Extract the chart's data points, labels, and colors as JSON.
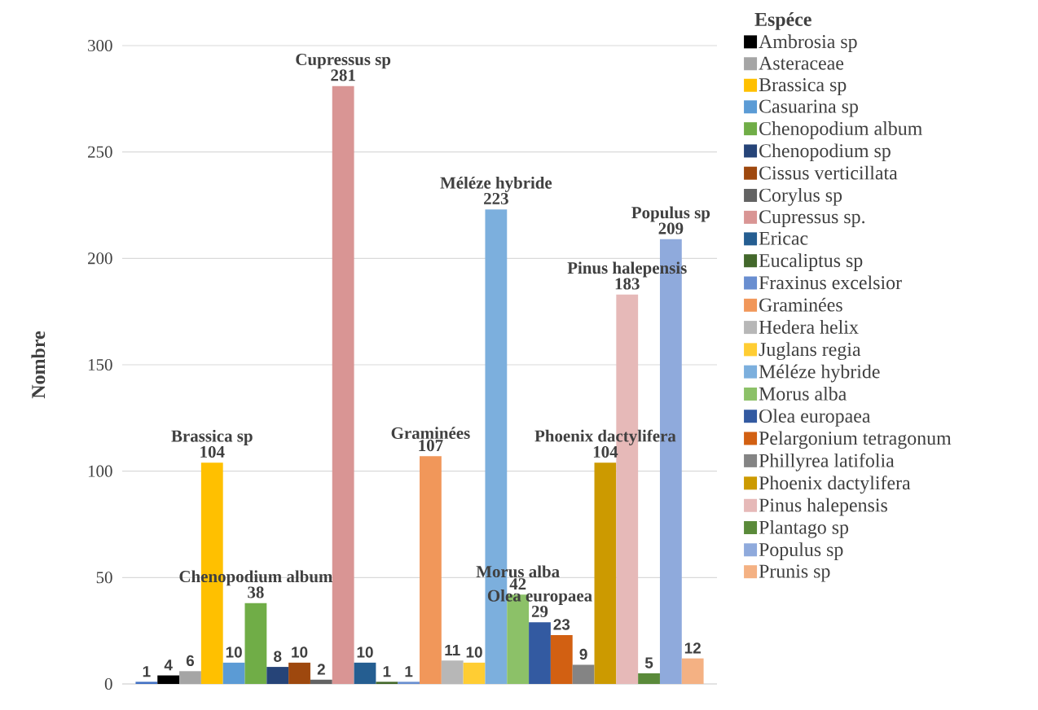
{
  "chart_data": {
    "type": "bar",
    "ylabel": "Nombre",
    "legend_title": "Espéce",
    "categories": [
      null
    ],
    "ylim": [
      0,
      300
    ],
    "yticks": [
      0,
      50,
      100,
      150,
      200,
      250,
      300
    ],
    "grid": "y",
    "legend": "right",
    "tick_labels": "y",
    "series": [
      {
        "color": "#4472c4",
        "values": [
          1
        ],
        "value_labels": [
          "1"
        ]
      },
      {
        "name": "Ambrosia sp",
        "color": "#000000",
        "values": [
          4
        ],
        "value_labels": [
          "4"
        ]
      },
      {
        "name": "Asteraceae",
        "color": "#a5a5a5",
        "values": [
          6
        ],
        "value_labels": [
          "6"
        ]
      },
      {
        "name": "Brassica sp",
        "color": "#ffc000",
        "values": [
          104
        ],
        "value_labels": [
          "104"
        ]
      },
      {
        "name": "Casuarina sp",
        "color": "#5b9bd5",
        "values": [
          10
        ],
        "value_labels": [
          "10"
        ]
      },
      {
        "name": "Chenopodium album",
        "color": "#70ad47",
        "values": [
          38
        ],
        "value_labels": [
          "38"
        ]
      },
      {
        "name": "Chenopodium sp",
        "color": "#264478",
        "values": [
          8
        ],
        "value_labels": [
          "8"
        ]
      },
      {
        "name": "Cissus verticillata",
        "color": "#9e480e",
        "values": [
          10
        ],
        "value_labels": [
          "10"
        ]
      },
      {
        "name": "Corylus sp",
        "color": "#636363",
        "values": [
          2
        ],
        "value_labels": [
          "2"
        ]
      },
      {
        "name": "Cupressus sp.",
        "color": "#d99594",
        "values": [
          281
        ],
        "value_labels": [
          "281"
        ]
      },
      {
        "name": "Ericac",
        "color": "#255e91",
        "values": [
          10
        ],
        "value_labels": [
          "10"
        ]
      },
      {
        "name": "Eucaliptus sp",
        "color": "#43682b",
        "values": [
          1
        ],
        "value_labels": [
          "1"
        ]
      },
      {
        "name": "Fraxinus excelsior",
        "color": "#698ed0",
        "values": [
          1
        ],
        "value_labels": [
          "1"
        ]
      },
      {
        "name": "Graminées",
        "color": "#f1975a",
        "values": [
          107
        ],
        "value_labels": [
          "107"
        ]
      },
      {
        "name": "Hedera helix",
        "color": "#b7b7b7",
        "values": [
          11
        ],
        "value_labels": [
          "11"
        ]
      },
      {
        "name": "Juglans regia",
        "color": "#ffcd33",
        "values": [
          10
        ],
        "value_labels": [
          "10"
        ]
      },
      {
        "name": "Méléze hybride",
        "color": "#7cafdd",
        "values": [
          223
        ],
        "value_labels": [
          "223"
        ]
      },
      {
        "name": "Morus alba",
        "color": "#8cc168",
        "values": [
          42
        ],
        "value_labels": [
          "42"
        ]
      },
      {
        "name": "Olea europaea",
        "color": "#335aa1",
        "values": [
          29
        ],
        "value_labels": [
          "29"
        ]
      },
      {
        "name": "Pelargonium tetragonum",
        "color": "#d26012",
        "values": [
          23
        ],
        "value_labels": [
          "23"
        ]
      },
      {
        "name": "Phillyrea latifolia",
        "color": "#848484",
        "values": [
          9
        ],
        "value_labels": [
          "9"
        ]
      },
      {
        "name": "Phoenix dactylifera",
        "color": "#cc9a00",
        "values": [
          104
        ],
        "value_labels": [
          "104"
        ]
      },
      {
        "name": "Pinus halepensis",
        "color": "#e6b9b8",
        "values": [
          183
        ],
        "value_labels": [
          "183"
        ]
      },
      {
        "name": "Plantago sp",
        "color": "#5a8a3a",
        "values": [
          5
        ],
        "value_labels": [
          "5"
        ]
      },
      {
        "name": "Populus sp",
        "color": "#8faadc",
        "values": [
          209
        ],
        "value_labels": [
          "209"
        ]
      },
      {
        "name": "Prunis sp",
        "color": "#f4b183",
        "values": [
          12
        ],
        "value_labels": [
          "12"
        ]
      }
    ],
    "annotations": [
      {
        "text": "Brassica sp",
        "y": 104
      },
      {
        "text": "Chenopodium album",
        "y": 38
      },
      {
        "text": "Cupressus sp",
        "y": 281
      },
      {
        "text": "Graminées",
        "y": 107
      },
      {
        "text": "Méléze hybride",
        "y": 223
      },
      {
        "text": "Morus alba",
        "y": 42
      },
      {
        "text": "Olea europaea",
        "y": 29
      },
      {
        "text": "Phoenix dactylifera",
        "y": 104
      },
      {
        "text": "Pinus halepensis",
        "y": 183
      },
      {
        "text": "Populus sp",
        "y": 209
      }
    ]
  }
}
